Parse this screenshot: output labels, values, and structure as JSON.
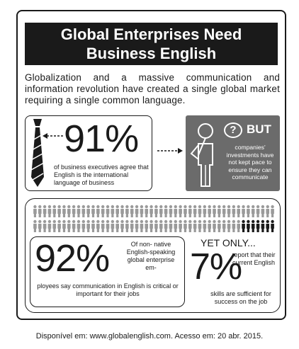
{
  "title": {
    "line1": "Global Enterprises Need",
    "line2": "Business English"
  },
  "intro": "Globalization and a massive communication and information revolution have created a single global market requiring a single common language.",
  "stat91": {
    "value": "91%",
    "text": "of business executives agree that English is the international language of business"
  },
  "but_panel": {
    "question": "?",
    "label": "BUT",
    "text": "companies' investments have not kept pace to ensure they can communicate"
  },
  "people": {
    "total": 100,
    "highlighted": 7,
    "colors": {
      "normal": "#9a9a9a",
      "highlighted": "#1a1a1a"
    }
  },
  "stat92": {
    "value": "92%",
    "text_right": "Of non- native English-speaking global enterprise em-",
    "text_bottom": "ployees say communication in English is critical or important for their jobs"
  },
  "stat7": {
    "lead": "YET ONLY...",
    "value": "7%",
    "text_right": "report that their current English",
    "text_bottom": "skills are sufficient for success on the job"
  },
  "source": "Disponível em: www.globalenglish.com. Acesso em: 20 abr. 2015."
}
